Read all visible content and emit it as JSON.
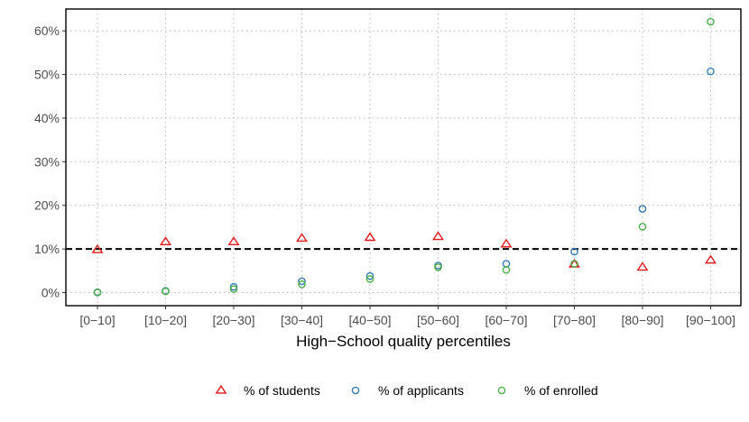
{
  "chart_data": {
    "type": "scatter",
    "xlabel": "High−School quality percentiles",
    "ylabel": "",
    "categories": [
      "[0−10]",
      "[10−20]",
      "[20−30]",
      "[30−40]",
      "[40−50]",
      "[50−60]",
      "[60−70]",
      "[70−80]",
      "[80−90]",
      "[90−100]"
    ],
    "ylim": [
      -3,
      65
    ],
    "yticks": [
      0,
      10,
      20,
      30,
      40,
      50,
      60
    ],
    "ytick_labels": [
      "0%",
      "10%",
      "20%",
      "30%",
      "40%",
      "50%",
      "60%"
    ],
    "reference_line": 10,
    "grid": true,
    "legend_position": "bottom",
    "series": [
      {
        "name": "% of students",
        "marker": "triangle",
        "color": "#e41a1c",
        "values": [
          9.8,
          11.6,
          11.6,
          12.4,
          12.6,
          12.8,
          11.1,
          6.5,
          5.8,
          7.4
        ]
      },
      {
        "name": "% of applicants",
        "marker": "circle",
        "color": "#377eb8",
        "values": [
          0.1,
          0.4,
          1.3,
          2.6,
          3.8,
          6.2,
          6.6,
          9.4,
          19.2,
          50.7
        ]
      },
      {
        "name": "% of enrolled",
        "marker": "circle",
        "color": "#4daf4a",
        "values": [
          0.0,
          0.3,
          0.8,
          1.9,
          3.1,
          5.8,
          5.2,
          6.6,
          15.1,
          62.1
        ]
      }
    ]
  }
}
